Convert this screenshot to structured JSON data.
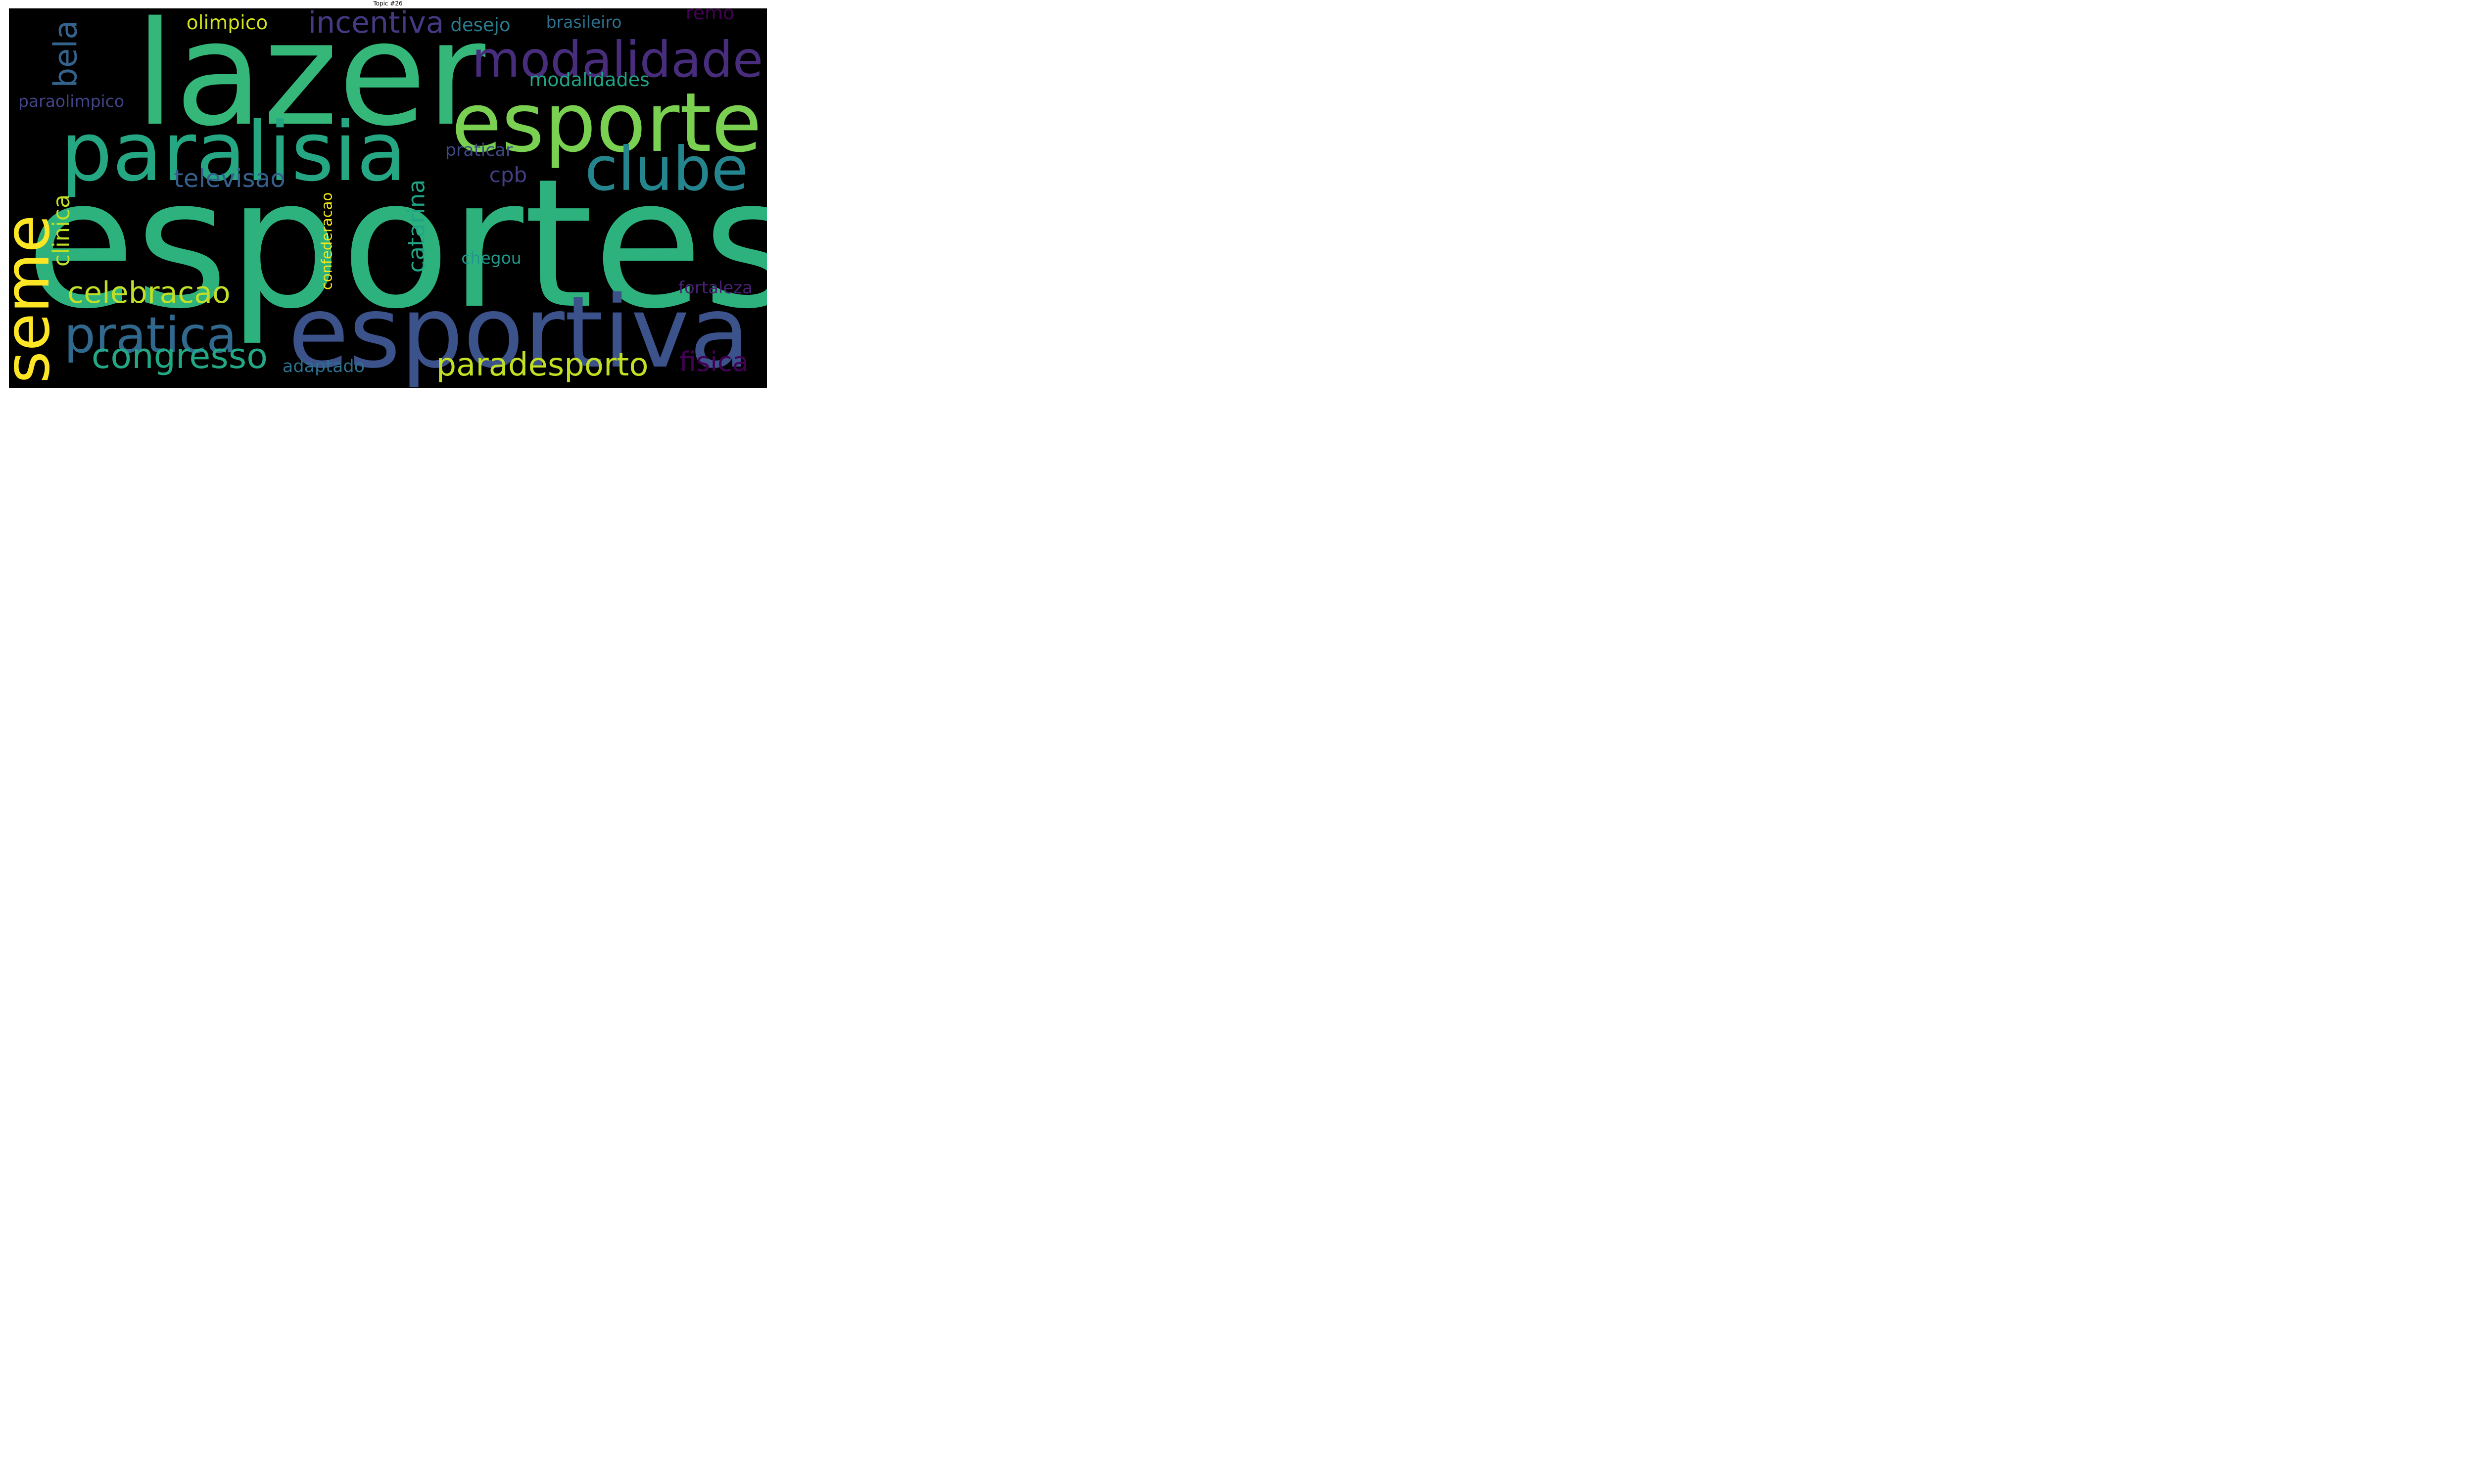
{
  "title": "Topic #26",
  "background_color": "#000000",
  "words": [
    {
      "text": "esportes",
      "color": "#2db27d"
    },
    {
      "text": "lazer",
      "color": "#35b779"
    },
    {
      "text": "esportiva",
      "color": "#3b528b"
    },
    {
      "text": "paralisia",
      "color": "#26a784"
    },
    {
      "text": "esporte",
      "color": "#7ad151"
    },
    {
      "text": "modalidade",
      "color": "#472d7b"
    },
    {
      "text": "seme",
      "color": "#fde725"
    },
    {
      "text": "clube",
      "color": "#25858e"
    },
    {
      "text": "pratica",
      "color": "#31688e"
    },
    {
      "text": "congresso",
      "color": "#22a884"
    },
    {
      "text": "paradesporto",
      "color": "#c2df23"
    },
    {
      "text": "celebracao",
      "color": "#c0df25"
    },
    {
      "text": "incentiva",
      "color": "#443a83"
    },
    {
      "text": "bela",
      "color": "#33638d"
    },
    {
      "text": "clinica",
      "color": "#bddf26"
    },
    {
      "text": "fisica",
      "color": "#440154"
    },
    {
      "text": "televisao",
      "color": "#355f8d"
    },
    {
      "text": "catarina",
      "color": "#20a486"
    },
    {
      "text": "olimpico",
      "color": "#d2e21b"
    },
    {
      "text": "desejo",
      "color": "#297b8e"
    },
    {
      "text": "brasileiro",
      "color": "#2c728e"
    },
    {
      "text": "modalidades",
      "color": "#20a386"
    },
    {
      "text": "remo",
      "color": "#440154"
    },
    {
      "text": "paraolimpico",
      "color": "#414487"
    },
    {
      "text": "praticar",
      "color": "#3e4989"
    },
    {
      "text": "cpb",
      "color": "#423f85"
    },
    {
      "text": "confederacao",
      "color": "#f1e51d"
    },
    {
      "text": "chegou",
      "color": "#1f988b"
    },
    {
      "text": "adaptado",
      "color": "#2d708e"
    },
    {
      "text": "fortaleza",
      "color": "#482173"
    }
  ]
}
